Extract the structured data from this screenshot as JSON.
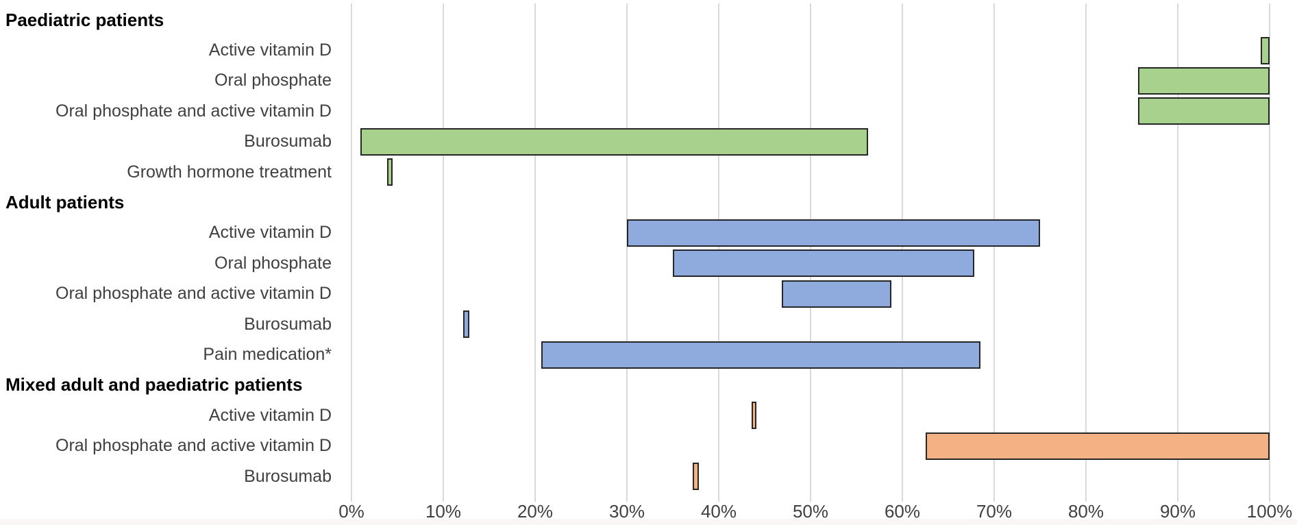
{
  "colors": {
    "background": "#ffffff",
    "gridline": "#d9d9d9",
    "bar_border": "#262626",
    "header_text": "#000000",
    "category_text": "#404040",
    "axis_text": "#404040",
    "bottom_strip": "#faf6f6",
    "paediatric_green": "#a9d18e",
    "adult_blue": "#8faadc",
    "mixed_orange": "#f4b183"
  },
  "chart_data": {
    "type": "bar",
    "subtype": "floating-range",
    "orientation": "horizontal",
    "title": "",
    "xlabel": "",
    "ylabel": "",
    "legend": "none",
    "grid": true,
    "x_axis": {
      "min": 0,
      "max": 100,
      "unit": "%",
      "tick_step": 10,
      "ticks": [
        "0%",
        "10%",
        "20%",
        "30%",
        "40%",
        "50%",
        "60%",
        "70%",
        "80%",
        "90%",
        "100%"
      ]
    },
    "groups": [
      {
        "header": "Paediatric patients",
        "color": "#a9d18e",
        "rows": [
          {
            "label": "Active vitamin D",
            "range_pct": [
              99,
              100
            ]
          },
          {
            "label": "Oral phosphate",
            "range_pct": [
              85.7,
              100
            ]
          },
          {
            "label": "Oral phosphate and active vitamin D",
            "range_pct": [
              85.7,
              100
            ]
          },
          {
            "label": "Burosumab",
            "range_pct": [
              1,
              56.3
            ]
          },
          {
            "label": "Growth hormone treatment",
            "range_pct": [
              3.9,
              4.5
            ]
          }
        ]
      },
      {
        "header": "Adult patients",
        "color": "#8faadc",
        "rows": [
          {
            "label": "Active vitamin D",
            "range_pct": [
              30,
              75
            ]
          },
          {
            "label": "Oral phosphate",
            "range_pct": [
              35,
              67.8
            ]
          },
          {
            "label": "Oral phosphate and active vitamin D",
            "range_pct": [
              46.9,
              58.8
            ]
          },
          {
            "label": "Burosumab",
            "range_pct": [
              12.2,
              12.8
            ]
          },
          {
            "label": "Pain medication*",
            "range_pct": [
              20.7,
              68.5
            ]
          }
        ]
      },
      {
        "header": "Mixed adult and paediatric patients",
        "color": "#f4b183",
        "rows": [
          {
            "label": "Active vitamin D",
            "range_pct": [
              43.6,
              44.1
            ]
          },
          {
            "label": "Oral phosphate and active vitamin D",
            "range_pct": [
              62.5,
              100
            ]
          },
          {
            "label": "Burosumab",
            "range_pct": [
              37.2,
              37.8
            ]
          }
        ]
      }
    ]
  }
}
